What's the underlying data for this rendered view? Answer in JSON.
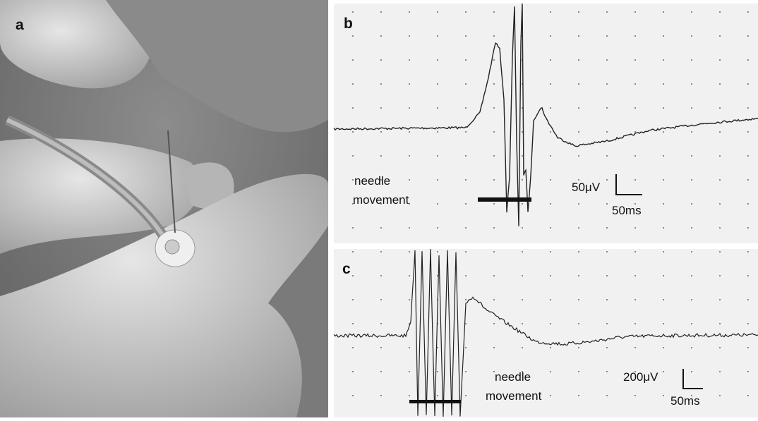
{
  "panels": [
    {
      "label": "a"
    },
    {
      "label": "b",
      "annotation": [
        "needle",
        "movement"
      ],
      "scale_y": "50μV",
      "scale_x": "50ms"
    },
    {
      "label": "c",
      "annotation": [
        "needle",
        "movement"
      ],
      "scale_y": "200μV",
      "scale_x": "50ms"
    }
  ]
}
